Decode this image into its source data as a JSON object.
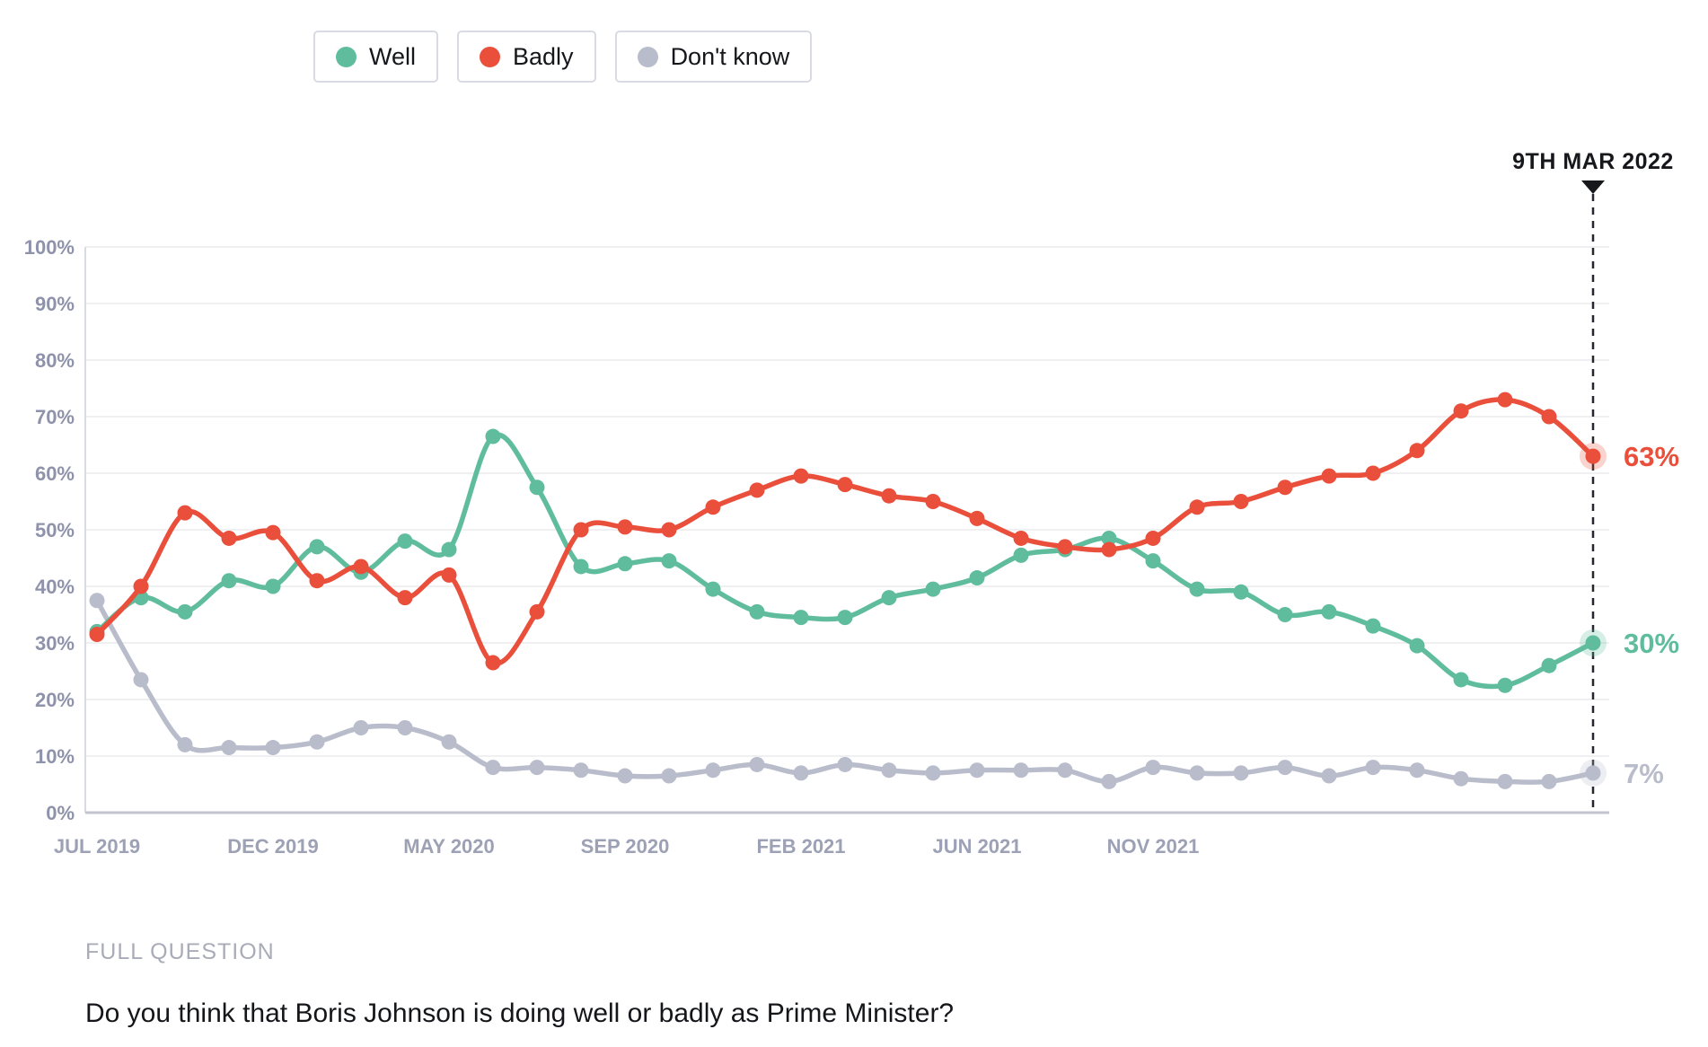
{
  "legend": {
    "items": [
      {
        "label": "Well",
        "color": "#5fbd9d"
      },
      {
        "label": "Badly",
        "color": "#e94f3b"
      },
      {
        "label": "Don't know",
        "color": "#b9bdcb"
      }
    ]
  },
  "footer": {
    "kicker": "FULL QUESTION",
    "question": "Do you think that Boris Johnson is doing well or badly as Prime Minister?"
  },
  "chart_data": {
    "type": "line",
    "title": "",
    "xlabel": "",
    "ylabel": "",
    "ylim": [
      0,
      100
    ],
    "grid": true,
    "legend_position": "top",
    "y_tick_labels": [
      "0%",
      "10%",
      "20%",
      "30%",
      "40%",
      "50%",
      "60%",
      "70%",
      "80%",
      "90%",
      "100%"
    ],
    "x_tick_labels": [
      "JUL 2019",
      "DEC 2019",
      "MAY 2020",
      "SEP 2020",
      "FEB 2021",
      "JUN 2021",
      "NOV 2021"
    ],
    "x_tick_point_indices": [
      0,
      4,
      8,
      12,
      16,
      20,
      24
    ],
    "annotation": {
      "label": "9TH MAR 2022",
      "point_index": 34
    },
    "series": [
      {
        "name": "Well",
        "color": "#5fbd9d",
        "end_label": "30%",
        "values": [
          32,
          38,
          35.5,
          41,
          40,
          47,
          42.5,
          48,
          46.5,
          66.5,
          57.5,
          43.5,
          44,
          44.5,
          39.5,
          35.5,
          34.5,
          34.5,
          38,
          39.5,
          41.5,
          45.5,
          46.5,
          48.5,
          44.5,
          39.5,
          39,
          35,
          35.5,
          33,
          29.5,
          23.5,
          22.5,
          26,
          30
        ]
      },
      {
        "name": "Badly",
        "color": "#e94f3b",
        "end_label": "63%",
        "values": [
          31.5,
          40,
          53,
          48.5,
          49.5,
          41,
          43.5,
          38,
          42,
          26.5,
          35.5,
          50,
          50.5,
          50,
          54,
          57,
          59.5,
          58,
          56,
          55,
          52,
          48.5,
          47,
          46.5,
          48.5,
          54,
          55,
          57.5,
          59.5,
          60,
          64,
          71,
          73,
          70,
          63
        ]
      },
      {
        "name": "Don't know",
        "color": "#b9bdcb",
        "end_label": "7%",
        "values": [
          37.5,
          23.5,
          12,
          11.5,
          11.5,
          12.5,
          15,
          15,
          12.5,
          8,
          8,
          7.5,
          6.5,
          6.5,
          7.5,
          8.5,
          7,
          8.5,
          7.5,
          7,
          7.5,
          7.5,
          7.5,
          5.5,
          8,
          7,
          7,
          8,
          6.5,
          8,
          7.5,
          6,
          5.5,
          5.5,
          7
        ]
      }
    ]
  }
}
